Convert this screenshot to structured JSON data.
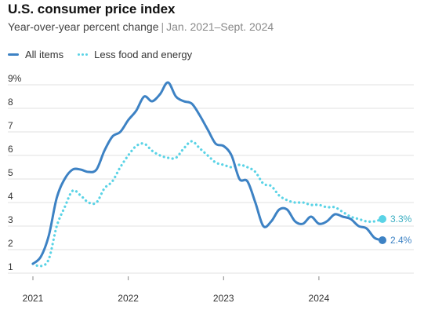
{
  "title": "U.S. consumer price index",
  "subtitle": "Year-over-year percent change",
  "subtitle_range": "Jan. 2021–Sept. 2024",
  "colors": {
    "all_items": "#3d82c4",
    "core": "#5ad3e6",
    "grid": "#e1e1e1"
  },
  "chart_data": {
    "type": "line",
    "title": "U.S. consumer price index",
    "subtitle": "Year-over-year percent change | Jan. 2021–Sept. 2024",
    "xlabel": "",
    "ylabel": "",
    "x": [
      "2021-01",
      "2021-02",
      "2021-03",
      "2021-04",
      "2021-05",
      "2021-06",
      "2021-07",
      "2021-08",
      "2021-09",
      "2021-10",
      "2021-11",
      "2021-12",
      "2022-01",
      "2022-02",
      "2022-03",
      "2022-04",
      "2022-05",
      "2022-06",
      "2022-07",
      "2022-08",
      "2022-09",
      "2022-10",
      "2022-11",
      "2022-12",
      "2023-01",
      "2023-02",
      "2023-03",
      "2023-04",
      "2023-05",
      "2023-06",
      "2023-07",
      "2023-08",
      "2023-09",
      "2023-10",
      "2023-11",
      "2023-12",
      "2024-01",
      "2024-02",
      "2024-03",
      "2024-04",
      "2024-05",
      "2024-06",
      "2024-07",
      "2024-08",
      "2024-09"
    ],
    "x_tick_labels": [
      "2021",
      "2022",
      "2023",
      "2024"
    ],
    "y_tick_labels": [
      "9%",
      "8",
      "7",
      "6",
      "5",
      "4",
      "3",
      "2",
      "1"
    ],
    "ylim": [
      1,
      9
    ],
    "grid": true,
    "legend": "top-left",
    "series": [
      {
        "name": "All items",
        "values": [
          1.4,
          1.7,
          2.6,
          4.2,
          5.0,
          5.4,
          5.4,
          5.3,
          5.4,
          6.2,
          6.8,
          7.0,
          7.5,
          7.9,
          8.5,
          8.3,
          8.6,
          9.1,
          8.5,
          8.3,
          8.2,
          7.7,
          7.1,
          6.5,
          6.4,
          6.0,
          5.0,
          4.9,
          4.0,
          3.0,
          3.2,
          3.7,
          3.7,
          3.2,
          3.1,
          3.4,
          3.1,
          3.2,
          3.5,
          3.4,
          3.3,
          3.0,
          2.9,
          2.5,
          2.4
        ]
      },
      {
        "name": "Less food and energy",
        "values": [
          1.4,
          1.3,
          1.6,
          3.0,
          3.8,
          4.5,
          4.3,
          4.0,
          4.0,
          4.6,
          4.9,
          5.5,
          6.0,
          6.4,
          6.5,
          6.2,
          6.0,
          5.9,
          5.9,
          6.3,
          6.6,
          6.3,
          6.0,
          5.7,
          5.6,
          5.5,
          5.6,
          5.5,
          5.3,
          4.8,
          4.7,
          4.3,
          4.1,
          4.0,
          4.0,
          3.9,
          3.9,
          3.8,
          3.8,
          3.6,
          3.4,
          3.3,
          3.2,
          3.2,
          3.3
        ]
      }
    ],
    "end_labels": [
      "2.4%",
      "3.3%"
    ]
  }
}
